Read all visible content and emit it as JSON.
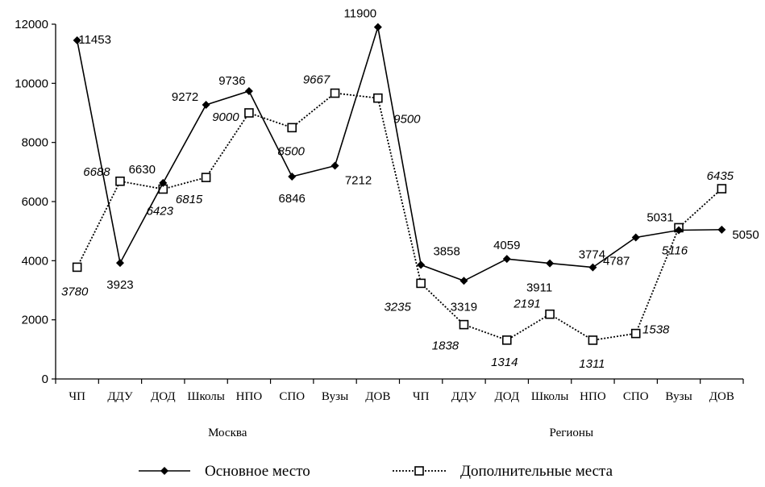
{
  "chart_data": {
    "type": "line",
    "categories": [
      "ЧП",
      "ДДУ",
      "ДОД",
      "Школы",
      "НПО",
      "СПО",
      "Вузы",
      "ДОВ",
      "ЧП",
      "ДДУ",
      "ДОД",
      "Школы",
      "НПО",
      "СПО",
      "Вузы",
      "ДОВ"
    ],
    "groups": [
      {
        "label": "Москва",
        "start": 0,
        "end": 7
      },
      {
        "label": "Регионы",
        "start": 8,
        "end": 15
      }
    ],
    "series": [
      {
        "name": "Основное место",
        "marker": "filled-diamond",
        "line": "solid",
        "color": "#000000",
        "values": [
          11453,
          3923,
          6630,
          9272,
          9736,
          6846,
          7212,
          11900,
          3858,
          3319,
          4059,
          3911,
          3774,
          4787,
          5031,
          5050
        ]
      },
      {
        "name": "Дополнительные места",
        "marker": "open-square",
        "line": "dotted",
        "color": "#000000",
        "values": [
          3780,
          6688,
          6423,
          6815,
          9000,
          8500,
          9667,
          9500,
          3235,
          1838,
          1314,
          2191,
          1311,
          1538,
          5116,
          6435
        ]
      }
    ],
    "ylim": [
      0,
      12000
    ],
    "yticks": [
      0,
      2000,
      4000,
      6000,
      8000,
      10000,
      12000
    ],
    "legend_position": "bottom",
    "grid": false
  }
}
